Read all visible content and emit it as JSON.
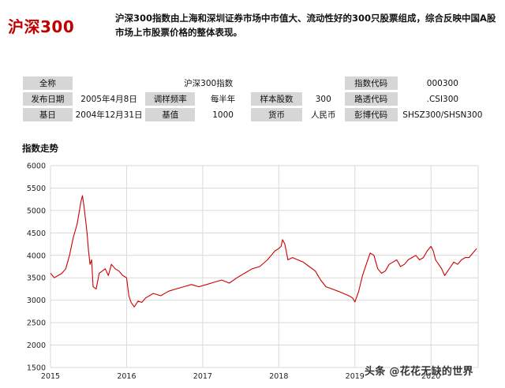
{
  "header": {
    "title": "沪深300",
    "intro": "沪深300指数由上海和深圳证券市场中市值大、流动性好的300只股票组成，综合反映中国A股市场上市股票价格的整体表现。"
  },
  "info": {
    "full_name_label": "全称",
    "full_name": "沪深300指数",
    "code_label": "指数代码",
    "code": "000300",
    "release_label": "发布日期",
    "release": "2005年4月8日",
    "freq_label": "调样频率",
    "freq": "每半年",
    "count_label": "样本股数",
    "count": "300",
    "route_label": "路透代码",
    "route": ".CSI300",
    "base_date_label": "基日",
    "base_date": "2004年12月31日",
    "base_value_label": "基值",
    "base_value": "1000",
    "currency_label": "货币",
    "currency": "人民币",
    "bloomberg_label": "彭博代码",
    "bloomberg": "SHSZ300/SHSN300"
  },
  "chart_title": "指数走势",
  "chart_data": {
    "type": "line",
    "title": "指数走势",
    "xlabel": "",
    "ylabel": "",
    "ylim": [
      1500,
      6000
    ],
    "xlim": [
      2015.0,
      2020.62
    ],
    "y_ticks": [
      1500,
      2000,
      2500,
      3000,
      3500,
      4000,
      4500,
      5000,
      5500,
      6000
    ],
    "x_ticks": [
      2015,
      2016,
      2017,
      2018,
      2019,
      2020
    ],
    "x_tick_labels": [
      "2015",
      "2016",
      "2017",
      "2018",
      "2019",
      "2020"
    ],
    "grid": true,
    "line_color": "#cc0000",
    "series": [
      {
        "x": [
          2015.0,
          2015.05,
          2015.1,
          2015.15,
          2015.2,
          2015.25,
          2015.3,
          2015.35,
          2015.4,
          2015.42,
          2015.44,
          2015.46,
          2015.48,
          2015.5,
          2015.52,
          2015.54,
          2015.56,
          2015.6,
          2015.64,
          2015.68,
          2015.72,
          2015.76,
          2015.8,
          2015.85,
          2015.9,
          2015.95,
          2016.0,
          2016.03,
          2016.06,
          2016.1,
          2016.15,
          2016.2,
          2016.25,
          2016.35,
          2016.45,
          2016.55,
          2016.65,
          2016.75,
          2016.85,
          2016.95,
          2017.05,
          2017.15,
          2017.25,
          2017.35,
          2017.45,
          2017.55,
          2017.65,
          2017.75,
          2017.85,
          2017.9,
          2017.95,
          2018.0,
          2018.03,
          2018.05,
          2018.08,
          2018.12,
          2018.18,
          2018.25,
          2018.32,
          2018.4,
          2018.48,
          2018.55,
          2018.62,
          2018.7,
          2018.78,
          2018.85,
          2018.92,
          2018.97,
          2019.0,
          2019.05,
          2019.1,
          2019.15,
          2019.2,
          2019.25,
          2019.3,
          2019.35,
          2019.4,
          2019.45,
          2019.5,
          2019.55,
          2019.6,
          2019.65,
          2019.7,
          2019.75,
          2019.8,
          2019.85,
          2019.9,
          2019.95,
          2020.0,
          2020.03,
          2020.06,
          2020.1,
          2020.14,
          2020.18,
          2020.22,
          2020.26,
          2020.3,
          2020.35,
          2020.4,
          2020.45,
          2020.5,
          2020.55,
          2020.6
        ],
        "y": [
          3600,
          3500,
          3550,
          3600,
          3700,
          4000,
          4400,
          4700,
          5200,
          5330,
          5100,
          4800,
          4500,
          4100,
          3800,
          3900,
          3300,
          3250,
          3600,
          3650,
          3700,
          3550,
          3800,
          3700,
          3650,
          3550,
          3500,
          3100,
          2950,
          2850,
          2980,
          2950,
          3050,
          3150,
          3100,
          3200,
          3250,
          3300,
          3350,
          3300,
          3350,
          3400,
          3450,
          3380,
          3500,
          3600,
          3700,
          3750,
          3900,
          4000,
          4100,
          4150,
          4200,
          4350,
          4250,
          3900,
          3950,
          3900,
          3850,
          3750,
          3650,
          3450,
          3300,
          3250,
          3200,
          3150,
          3100,
          3050,
          2960,
          3200,
          3550,
          3800,
          4050,
          4000,
          3700,
          3600,
          3650,
          3800,
          3850,
          3900,
          3750,
          3800,
          3900,
          3950,
          4000,
          3900,
          3950,
          4100,
          4200,
          4100,
          3900,
          3800,
          3700,
          3550,
          3650,
          3750,
          3850,
          3800,
          3900,
          3950,
          3950,
          4050,
          4150
        ]
      }
    ]
  },
  "watermark": "头条 @花花无缺的世界"
}
